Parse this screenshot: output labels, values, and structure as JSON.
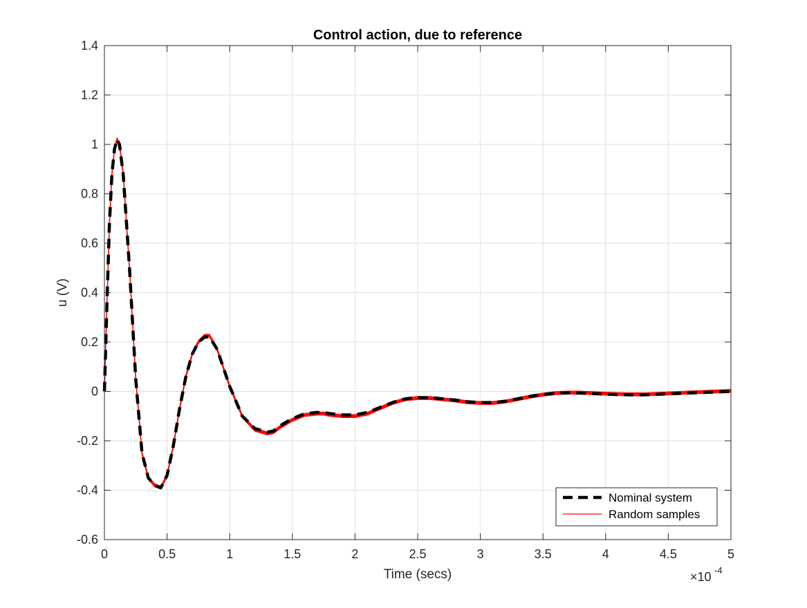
{
  "chart_data": {
    "type": "line",
    "title": "Control action, due to reference",
    "xlabel": "Time (secs)",
    "ylabel": "u (V)",
    "x_exponent_label": "×10",
    "x_exponent_power": "-4",
    "xlim": [
      0,
      5
    ],
    "ylim": [
      -0.6,
      1.4
    ],
    "xticks": [
      "0",
      "0.5",
      "1",
      "1.5",
      "2",
      "2.5",
      "3",
      "3.5",
      "4",
      "4.5",
      "5"
    ],
    "yticks": [
      "-0.6",
      "-0.4",
      "-0.2",
      "0",
      "0.2",
      "0.4",
      "0.6",
      "0.8",
      "1",
      "1.2",
      "1.4"
    ],
    "grid": true,
    "legend_position": "bottom-right",
    "colors": {
      "nominal": "#000000",
      "samples": "#ff0000"
    },
    "series": [
      {
        "name": "Nominal system",
        "style": "dashed",
        "x": [
          0,
          0.02,
          0.04,
          0.06,
          0.08,
          0.1,
          0.12,
          0.15,
          0.2,
          0.25,
          0.3,
          0.35,
          0.4,
          0.45,
          0.5,
          0.55,
          0.6,
          0.65,
          0.7,
          0.75,
          0.8,
          0.84,
          0.9,
          1.0,
          1.1,
          1.2,
          1.3,
          1.35,
          1.4,
          1.5,
          1.6,
          1.7,
          1.75,
          1.8,
          1.9,
          2.0,
          2.1,
          2.2,
          2.3,
          2.4,
          2.5,
          2.6,
          2.7,
          2.8,
          2.9,
          3.0,
          3.1,
          3.2,
          3.3,
          3.4,
          3.5,
          3.6,
          3.7,
          3.8,
          3.9,
          4.0,
          4.1,
          4.2,
          4.3,
          4.4,
          4.5,
          4.6,
          4.7,
          4.8,
          4.9,
          5.0
        ],
        "y": [
          0,
          0.35,
          0.68,
          0.88,
          0.98,
          1.02,
          1.0,
          0.88,
          0.5,
          0.05,
          -0.25,
          -0.35,
          -0.38,
          -0.39,
          -0.34,
          -0.22,
          -0.07,
          0.06,
          0.15,
          0.2,
          0.22,
          0.22,
          0.17,
          0.02,
          -0.1,
          -0.15,
          -0.165,
          -0.16,
          -0.14,
          -0.11,
          -0.09,
          -0.085,
          -0.085,
          -0.09,
          -0.095,
          -0.095,
          -0.085,
          -0.065,
          -0.045,
          -0.03,
          -0.025,
          -0.025,
          -0.03,
          -0.035,
          -0.042,
          -0.045,
          -0.045,
          -0.04,
          -0.03,
          -0.02,
          -0.012,
          -0.007,
          -0.006,
          -0.007,
          -0.009,
          -0.011,
          -0.013,
          -0.014,
          -0.014,
          -0.012,
          -0.01,
          -0.008,
          -0.006,
          -0.004,
          -0.002,
          0.0
        ]
      },
      {
        "name": "Random samples",
        "style": "solid",
        "x": [
          0,
          0.02,
          0.04,
          0.06,
          0.08,
          0.1,
          0.12,
          0.15,
          0.2,
          0.25,
          0.3,
          0.35,
          0.4,
          0.45,
          0.5,
          0.55,
          0.6,
          0.65,
          0.7,
          0.75,
          0.8,
          0.84,
          0.9,
          1.0,
          1.1,
          1.2,
          1.3,
          1.35,
          1.4,
          1.5,
          1.6,
          1.7,
          1.75,
          1.8,
          1.9,
          2.0,
          2.1,
          2.2,
          2.3,
          2.4,
          2.5,
          2.6,
          2.7,
          2.8,
          2.9,
          3.0,
          3.1,
          3.2,
          3.3,
          3.4,
          3.5,
          3.6,
          3.7,
          3.8,
          3.9,
          4.0,
          4.1,
          4.2,
          4.3,
          4.4,
          4.5,
          4.6,
          4.7,
          4.8,
          4.9,
          5.0
        ],
        "y": [
          0,
          0.35,
          0.68,
          0.88,
          0.98,
          1.02,
          1.0,
          0.88,
          0.5,
          0.05,
          -0.25,
          -0.35,
          -0.38,
          -0.39,
          -0.34,
          -0.22,
          -0.07,
          0.06,
          0.15,
          0.2,
          0.225,
          0.225,
          0.17,
          0.02,
          -0.1,
          -0.155,
          -0.17,
          -0.165,
          -0.145,
          -0.115,
          -0.095,
          -0.09,
          -0.09,
          -0.095,
          -0.1,
          -0.1,
          -0.09,
          -0.068,
          -0.047,
          -0.032,
          -0.027,
          -0.027,
          -0.032,
          -0.037,
          -0.044,
          -0.047,
          -0.047,
          -0.041,
          -0.031,
          -0.021,
          -0.013,
          -0.007,
          -0.005,
          -0.005,
          -0.007,
          -0.009,
          -0.011,
          -0.012,
          -0.012,
          -0.01,
          -0.008,
          -0.006,
          -0.004,
          -0.002,
          0.0,
          0.002
        ]
      }
    ]
  }
}
